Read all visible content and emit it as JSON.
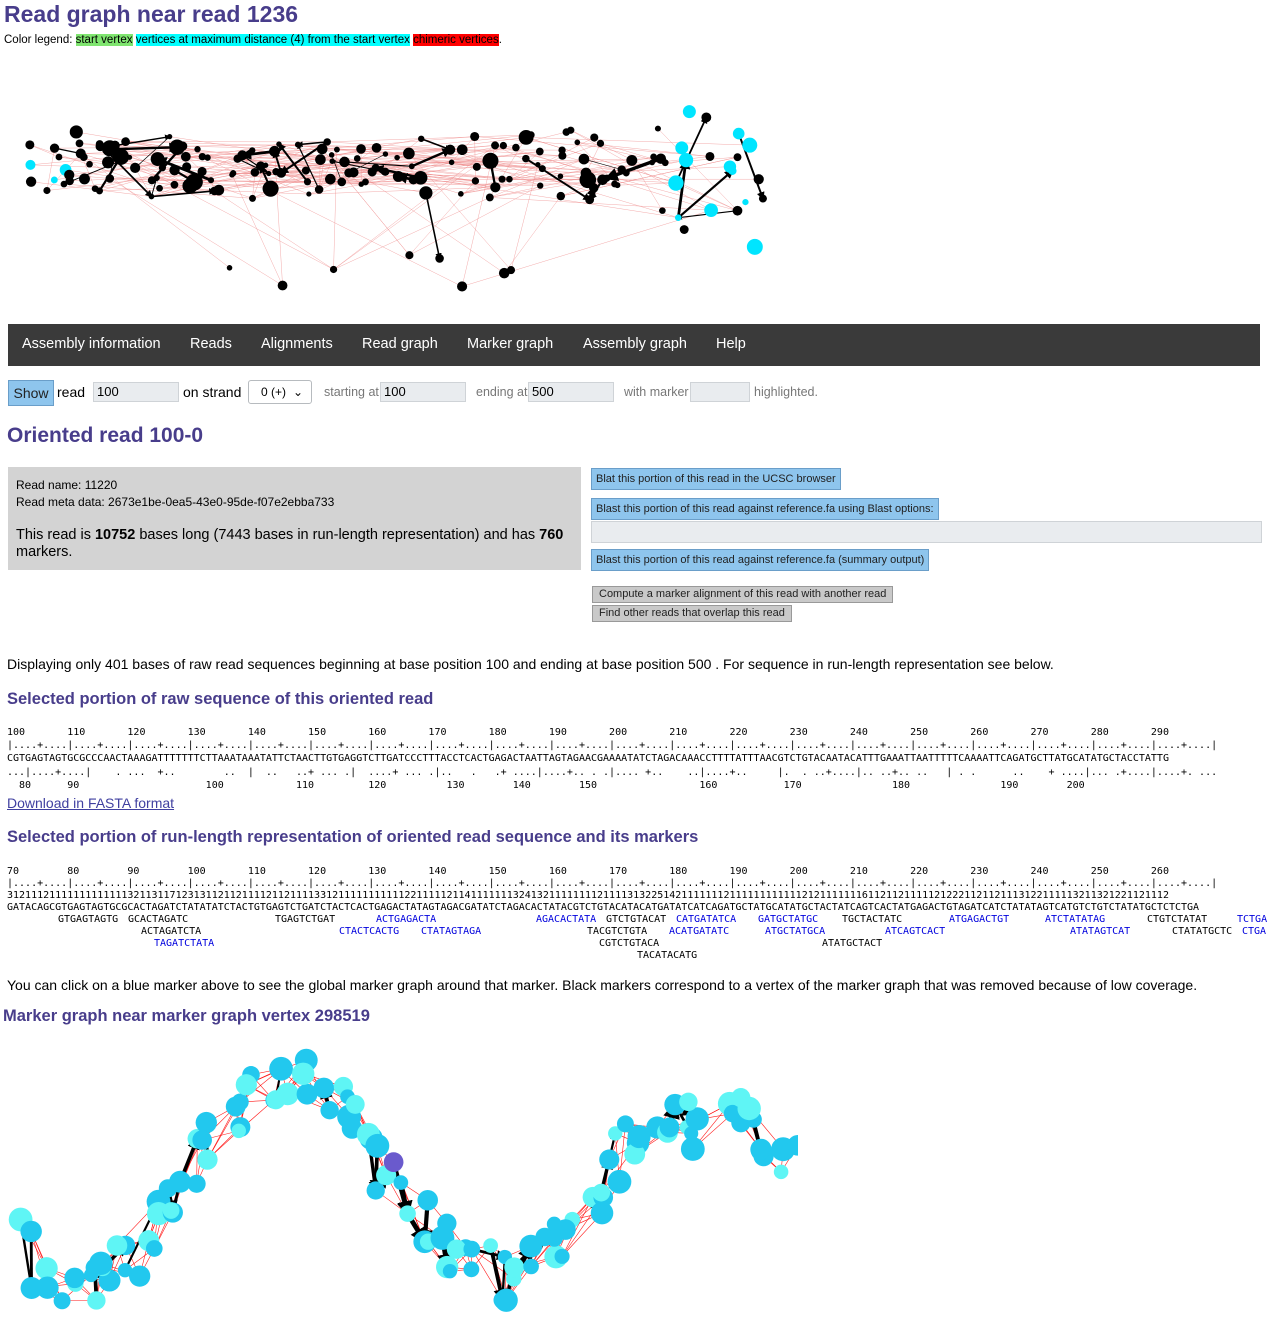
{
  "header": {
    "title": "Read graph near read 1236",
    "legend_prefix": "Color legend:",
    "legend_start": "start vertex",
    "legend_max": "vertices at maximum distance (4) from the start vertex",
    "legend_chimeric": "chimeric vertices",
    "legend_suffix": "."
  },
  "nav": {
    "items": [
      "Assembly information",
      "Reads",
      "Alignments",
      "Read graph",
      "Marker graph",
      "Assembly graph",
      "Help"
    ]
  },
  "form": {
    "show_label": "Show",
    "read_label": "read",
    "read_value": "100",
    "strand_label": "on strand",
    "strand_value": "0 (+)",
    "start_label": "starting at",
    "start_value": "100",
    "end_label": "ending at",
    "end_value": "500",
    "marker_label": "with marker",
    "marker_value": "",
    "highlighted_label": "highlighted."
  },
  "read": {
    "title": "Oriented read 100-0",
    "name_line": "Read name: 11220",
    "meta_line": "Read meta data: 2673e1be-0ea5-43e0-95de-f07e2ebba733",
    "len_pre": "This read is ",
    "len_bases": "10752",
    "len_mid": " bases long (7443 bases in run-length representation) and has ",
    "len_markers": "760",
    "len_post": " markers."
  },
  "buttons": {
    "blat": "Blat this portion of this read in the UCSC browser",
    "blast_opts": "Blast this portion of this read against reference.fa using Blast options:",
    "blast_summary": "Blast this portion of this read against reference.fa (summary output)",
    "compute_alignment": "Compute a marker alignment of this read with another read",
    "find_overlap": "Find other reads that overlap this read"
  },
  "raw": {
    "display_note": "Displaying only 401 bases of raw read sequences beginning at base position 100 and ending at base position 500 . For sequence in run-length representation see below.",
    "heading": "Selected portion of raw sequence of this oriented read",
    "pos_line": "100       110       120       130       140       150       160       170       180       190       200       210       220       230       240       250       260       270       280       290",
    "ruler": "|....+....|....+....|....+....|....+....|....+....|....+....|....+....|....+....|....+....|....+....|....+....|....+....|....+....|....+....|....+....|....+....|....+....|....+....|....+....|....+....|",
    "seq": "CGTGAGTAGTGCGCCCAACTAAAGATTTTTTTCTTAAATAAATATTCTAACTTGTGAGGTCTTGATCCCTTTACCTCACTGAGACTAATTAGTAGAACGAAAATATCTAGACAAACCTTTTATTTAACGTCTGTACAATACATTTGAAATTAATTTTTCAAAATTCAGATGCTTATGCATATGCTACCTATTG",
    "rle_ruler": "...|....+....|    . ...  +..        ..  |  ..   ..+ ... .|  ....+ ... .|..   .   .+ ....|....+.. . .|.... +..    ..|....+..     |.  . ..+....|.. ..+.. ..   | . .      ..    + ....|... .+....|....+. ...",
    "rle_pos": "  80      90                     100            110         120          130        140        150                 160           170               180               190        200",
    "download": "Download in FASTA format"
  },
  "rle": {
    "heading": "Selected portion of run-length representation of oriented read sequence and its markers",
    "pos_line": "70        80        90        100       110       120       130       140       150       160       170       180       190       200       210       220       230       240       250       260",
    "ruler": "|....+....|....+....|....+....|....+....|....+....|....+....|....+....|....+....|....+....|....+....|....+....|....+....|....+....|....+....|....+....|....+....|....+....|....+....|....+....|....+....|",
    "counts": "3121112111111111111132113117123131121121111211211113312111111111112211111211411111113241321111111121111313225142111111121111111111112121111111611211211111212221121121113122111113211321221121112",
    "seq": "GATACAGCGTGAGTAGTGCGCACTAGATCTATATATCTACTGTGAGTCTGATCTACTCACTGAGACTATAGTAGACGATATCTAGACACTATACGTCTGTACATACATGATATCATCAGATGCTATGCATATGCTACTATCAGTCACTATGAGACTGTAGATCATCTATATAGTCATGTCTGTCTATATGCTCTCTGA",
    "markers": [
      {
        "text": "GTGAGTAGTG",
        "blue": false
      },
      {
        "text": "GCACTAGATC",
        "blue": false
      },
      {
        "text": "TGAGTCTGAT",
        "blue": false
      },
      {
        "text": "ACTGAGACTA",
        "blue": true
      },
      {
        "text": "AGACACTATA",
        "blue": true
      },
      {
        "text": "GTCTGTACAT",
        "blue": false
      },
      {
        "text": "CATGATATCA",
        "blue": true
      },
      {
        "text": "GATGCTATGC",
        "blue": true
      },
      {
        "text": "TGCTACTATC",
        "blue": false
      },
      {
        "text": "ATGAGACTGT",
        "blue": true
      },
      {
        "text": "ATCTATATAG",
        "blue": true
      },
      {
        "text": "CTGTCTATAT",
        "blue": false
      },
      {
        "text": "TCTGA",
        "blue": true
      },
      {
        "text": "ACTAGATCTA",
        "blue": false
      },
      {
        "text": "CTACTCACTG",
        "blue": true
      },
      {
        "text": "CTATAGTAGA",
        "blue": true
      },
      {
        "text": "TACGTCTGTA",
        "blue": false
      },
      {
        "text": "ACATGATATC",
        "blue": true
      },
      {
        "text": "ATGCTATGCA",
        "blue": true
      },
      {
        "text": "ATCAGTCACT",
        "blue": true
      },
      {
        "text": "ATATAGTCAT",
        "blue": true
      },
      {
        "text": "CTATATGCTC",
        "blue": false
      },
      {
        "text": "CTGA",
        "blue": true
      },
      {
        "text": "TAGATCTATA",
        "blue": true
      },
      {
        "text": "CGTCTGTACA",
        "blue": false
      },
      {
        "text": "ATATGCTACT",
        "blue": false
      },
      {
        "text": "TACATACATG",
        "blue": false
      }
    ],
    "note": "You can click on a blue marker above to see the global marker graph around that marker. Black markers correspond to a vertex of the marker graph that was removed because of low coverage."
  },
  "marker_graph": {
    "title": "Marker graph near marker graph vertex 298519"
  },
  "colors": {
    "accent": "#483d8b",
    "start_vertex": "#7fe56f",
    "max_distance_vertex": "#00ffff",
    "chimeric_vertex": "#ff0000",
    "nav_bg": "#3a3a3a",
    "button_blue": "#8ec5ed"
  }
}
